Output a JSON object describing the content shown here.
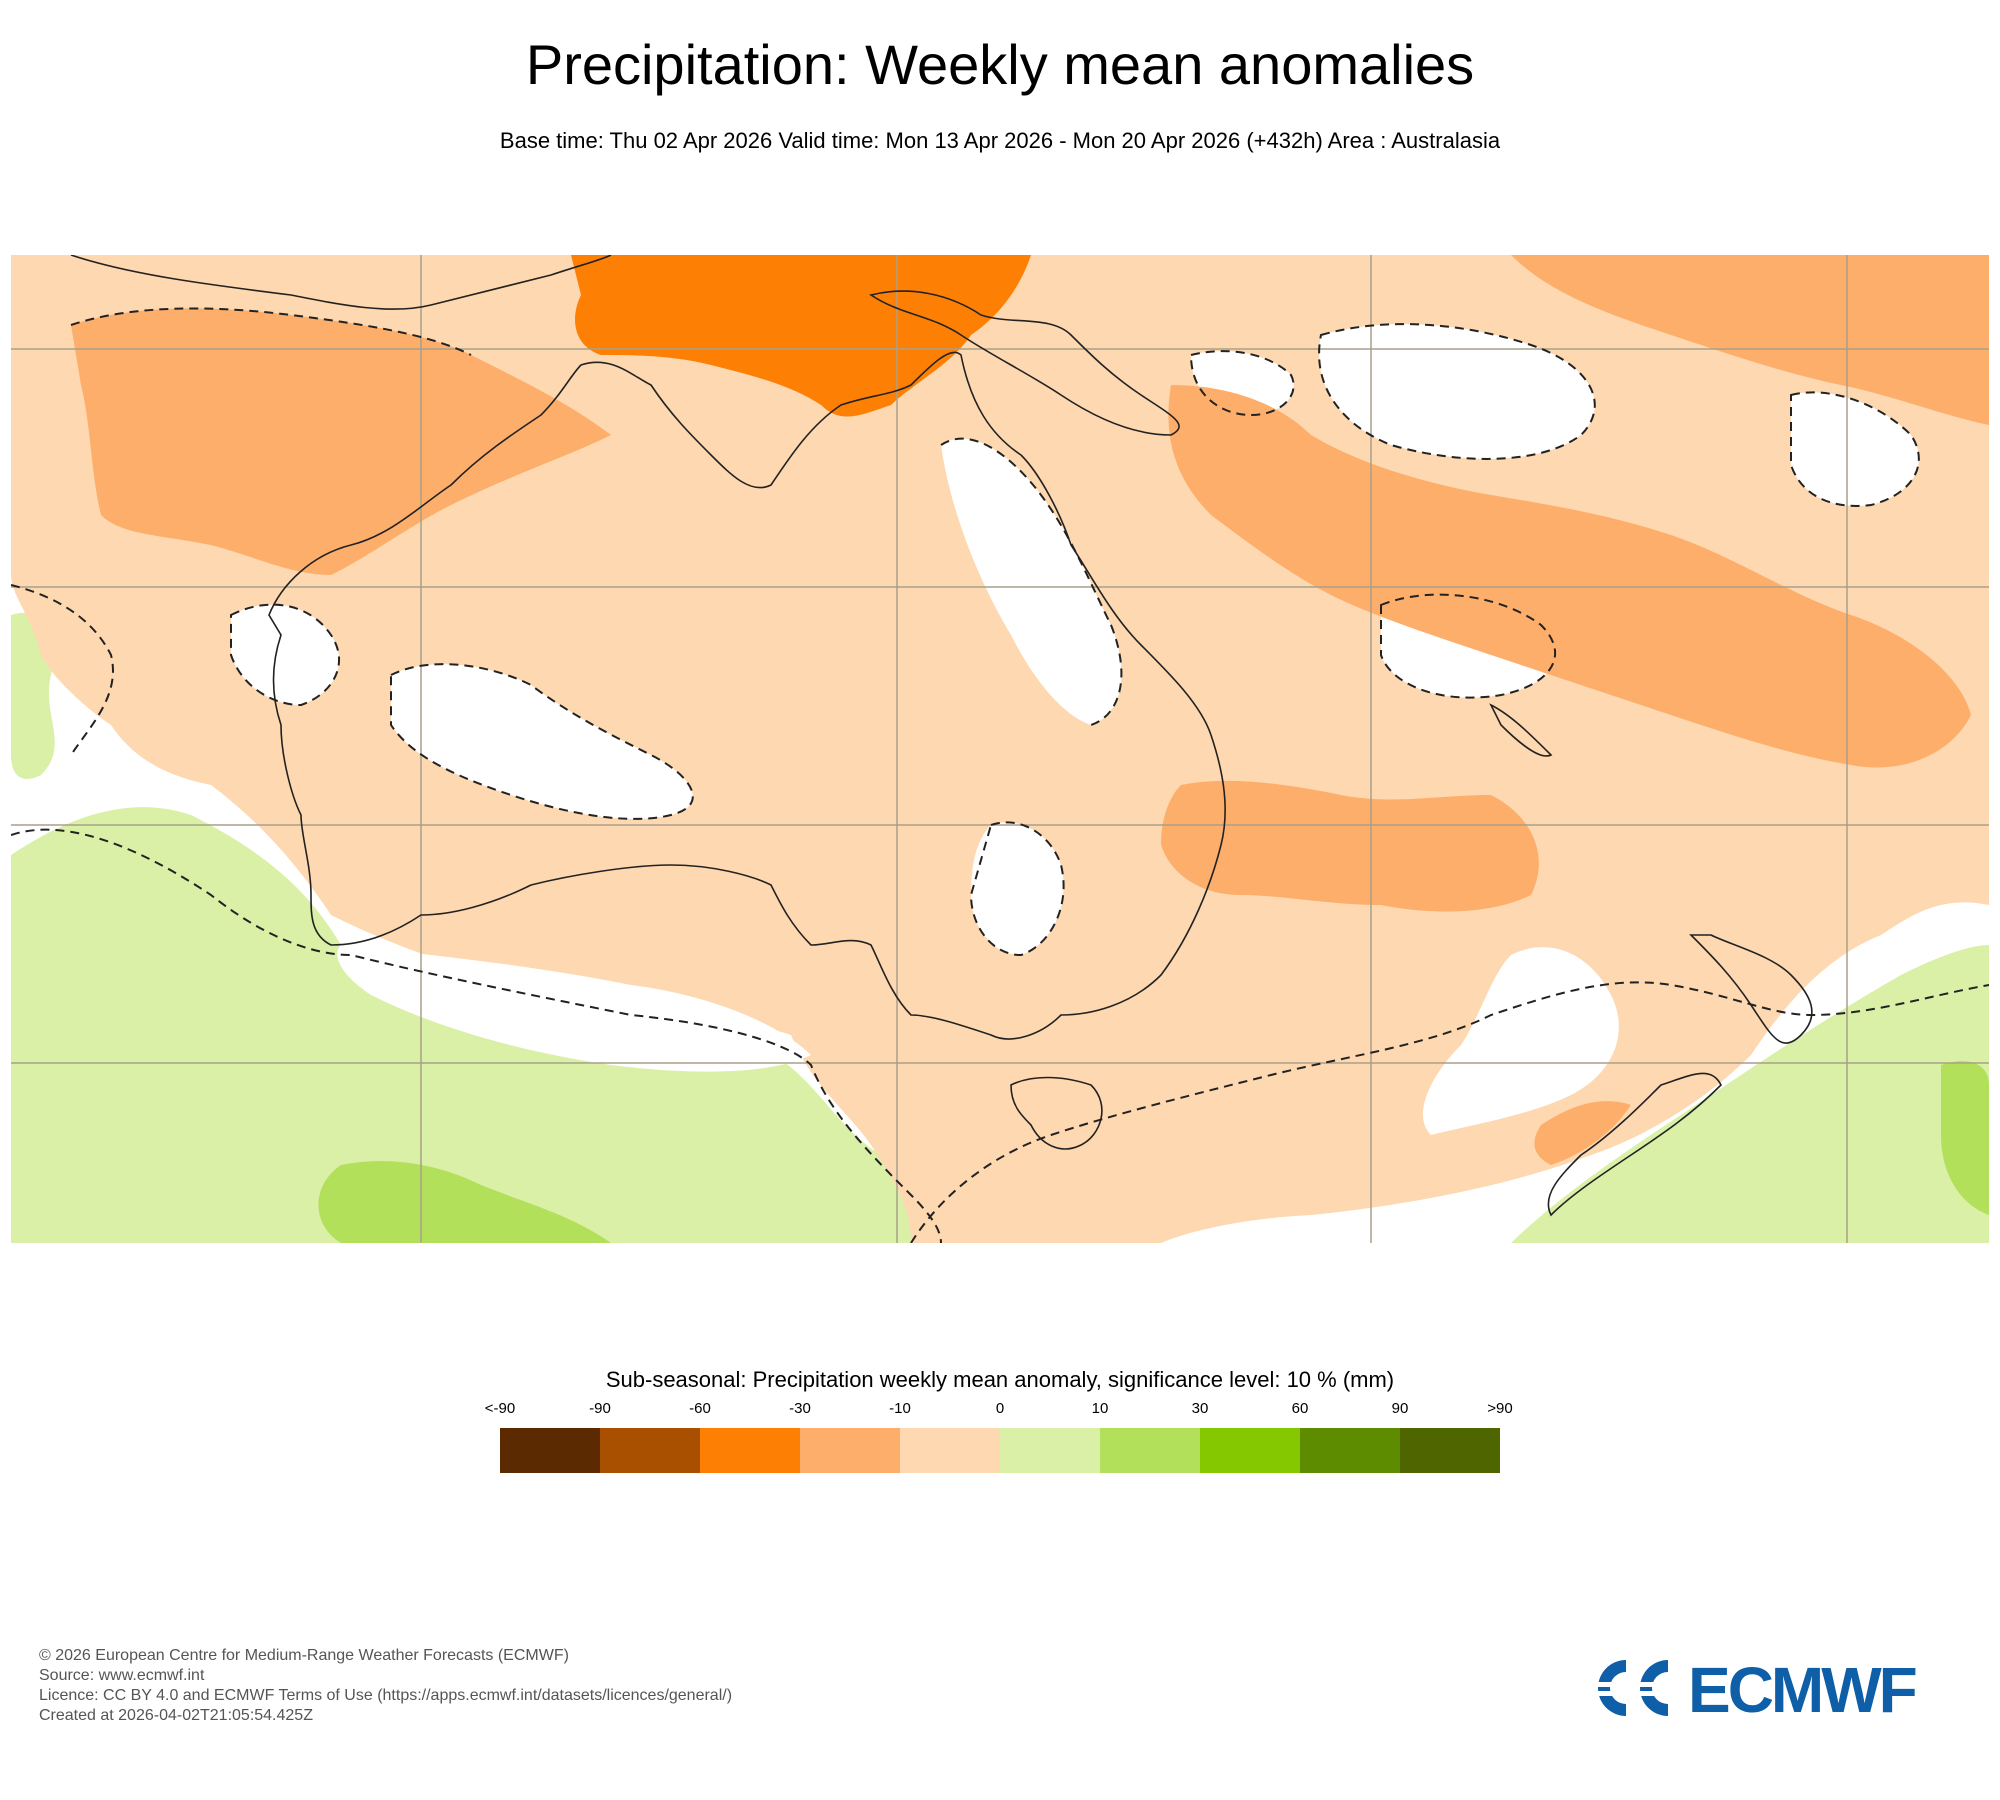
{
  "title": "Precipitation: Weekly mean anomalies",
  "subtitle": "Base time: Thu 02 Apr 2026 Valid time: Mon 13 Apr 2026 - Mon 20 Apr 2026 (+432h) Area : Australasia",
  "map": {
    "region": "Australasia",
    "colors": {
      "below_minus30_to_minus10": "#fdae6b",
      "minus30_to_minus60": "#fd8005",
      "minus10_to_0": "#fdd8b0",
      "zero_to_10": "#d9f0a6",
      "ten_to_30": "#b2e05a",
      "land_outline": "#222222",
      "significance_contour": "#222222",
      "grid": "#a89f8a"
    }
  },
  "legend": {
    "title": "Sub-seasonal: Precipitation weekly mean anomaly, significance level: 10 % (mm)",
    "ticks": [
      "<-90",
      "-90",
      "-60",
      "-30",
      "-10",
      "0",
      "10",
      "30",
      "60",
      "90",
      ">90"
    ],
    "colors": [
      "#5c2a00",
      "#a95000",
      "#fd8005",
      "#fdae6b",
      "#fdd8b0",
      "#d9f0a6",
      "#b2e05a",
      "#86c800",
      "#5e8c00",
      "#4f6600"
    ]
  },
  "footer": {
    "line1": "© 2026 European Centre for Medium-Range Weather Forecasts (ECMWF)",
    "line2": "Source: www.ecmwf.int",
    "line3": "Licence: CC BY 4.0 and ECMWF Terms of Use (https://apps.ecmwf.int/datasets/licences/general/)",
    "line4": "Created at 2026-04-02T21:05:54.425Z"
  },
  "logo": {
    "text": "ECMWF",
    "color": "#0f5ea8"
  }
}
